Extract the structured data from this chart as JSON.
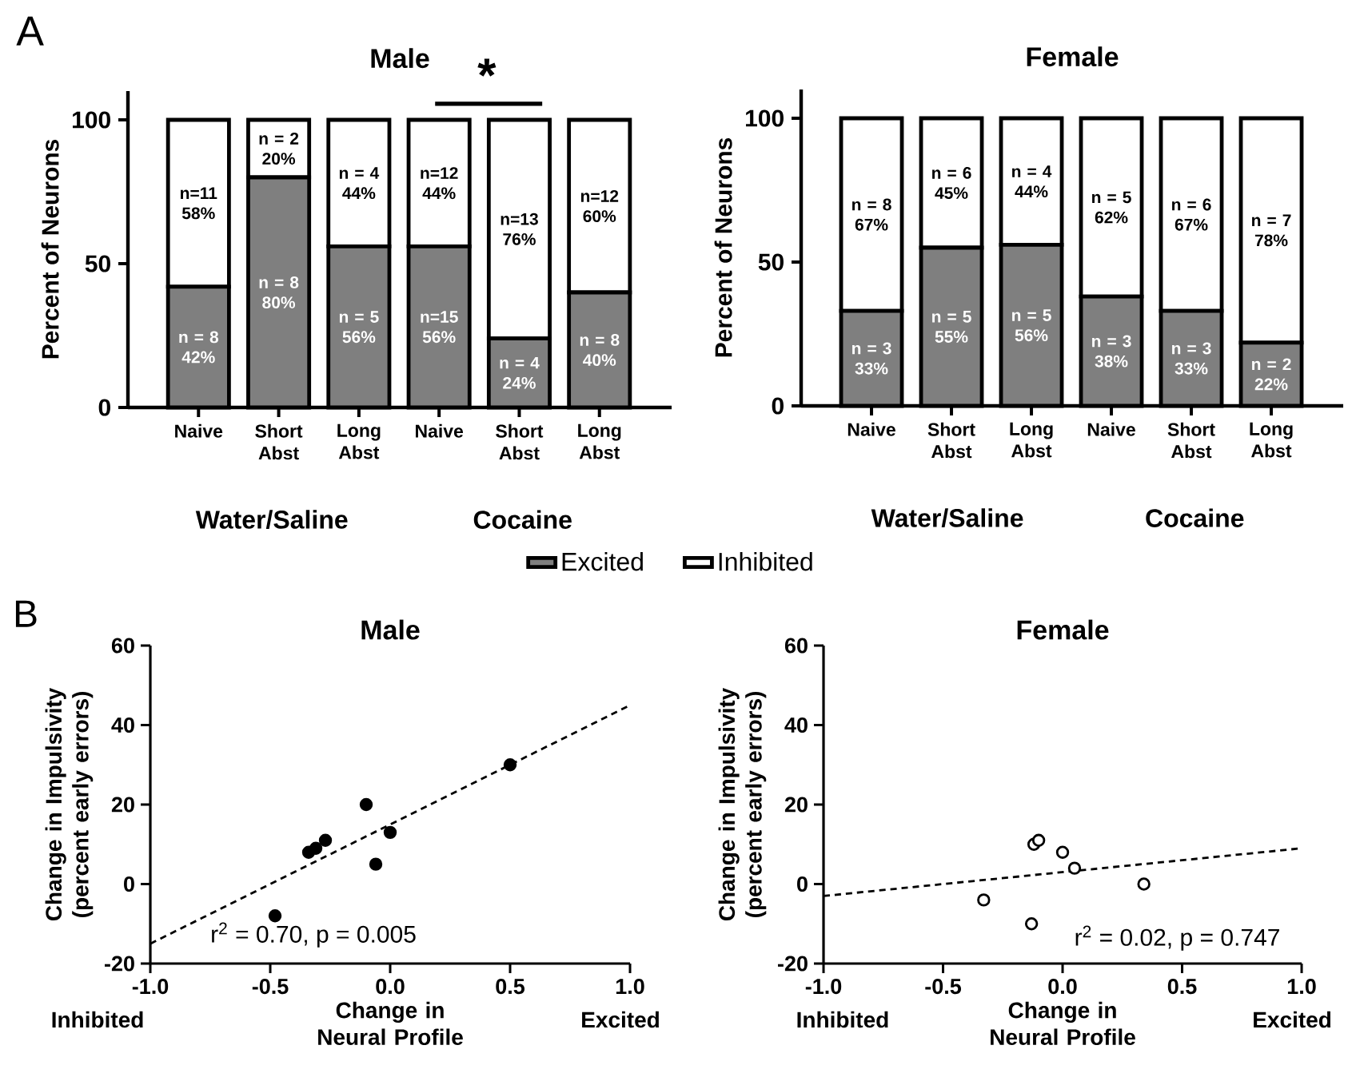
{
  "chart_data": [
    {
      "type": "bar",
      "title": "Male",
      "ylabel": "Percent of Neurons",
      "stacked": true,
      "legend": "bottom",
      "categories": [
        "Naive",
        "Short Abst",
        "Long Abst",
        "Naive",
        "Short Abst",
        "Long Abst"
      ],
      "ylim": [
        0,
        110
      ],
      "yticks": [
        0,
        50,
        100
      ],
      "annotations": [
        "A",
        "*",
        "Water/Saline",
        "Cocaine"
      ],
      "series": [
        {
          "name": "Excited",
          "color": "#7f7f7f",
          "values": [
            42,
            80,
            56,
            56,
            24,
            40
          ],
          "value_labels": [
            "n = 8 42%",
            "n = 8 80%",
            "n = 5 56%",
            "n=15 56%",
            "n = 4 24%",
            "n = 8 40%"
          ]
        },
        {
          "name": "Inhibited",
          "color": "#ffffff",
          "values": [
            58,
            20,
            44,
            44,
            76,
            60
          ],
          "value_labels": [
            "n=11 58%",
            "n = 2 20%",
            "n = 4 44%",
            "n=12 44%",
            "n=13 76%",
            "n=12 60%"
          ]
        }
      ]
    },
    {
      "type": "bar",
      "title": "Female",
      "ylabel": "Percent of Neurons",
      "stacked": true,
      "categories": [
        "Naive",
        "Short Abst",
        "Long Abst",
        "Naive",
        "Short Abst",
        "Long Abst"
      ],
      "ylim": [
        0,
        110
      ],
      "yticks": [
        0,
        50,
        100
      ],
      "annotations": [
        "Water/Saline",
        "Cocaine"
      ],
      "series": [
        {
          "color": "#7f7f7f",
          "values": [
            33,
            55,
            56,
            38,
            33,
            22
          ],
          "value_labels": [
            "n = 3 33%",
            "n = 5 55%",
            "n = 5 56%",
            "n = 3 38%",
            "n = 3 33%",
            "n = 2 22%"
          ]
        },
        {
          "color": "#ffffff",
          "values": [
            67,
            45,
            44,
            62,
            67,
            78
          ],
          "value_labels": [
            "n = 8 67%",
            "n = 6 45%",
            "n = 4 44%",
            "n = 5 62%",
            "n = 6 67%",
            "n = 7 78%"
          ]
        }
      ]
    },
    {
      "type": "scatter",
      "title": "Male",
      "xlabel": "Change in Neural Profile",
      "ylabel": "Change in Impulsivity (percent early errors)",
      "xlim": [
        -1,
        1
      ],
      "ylim": [
        -20,
        60
      ],
      "xticks": [
        {
          "value": -1,
          "label": "-1.0"
        },
        {
          "value": -0.5,
          "label": "-0.5"
        },
        {
          "value": 0,
          "label": "0.0"
        },
        {
          "value": 0.5,
          "label": "0.5"
        },
        {
          "value": 1,
          "label": "1.0"
        }
      ],
      "yticks": [
        -20,
        0,
        20,
        40,
        60
      ],
      "annotations": [
        "B",
        "r$^{2}$ = 0.70, p = 0.005",
        "Inhibited",
        "Excited"
      ],
      "series": [
        {
          "color": "#000000",
          "marker": "circle",
          "x": [
            -0.48,
            -0.34,
            -0.31,
            -0.27,
            -0.1,
            -0.06,
            0.0,
            0.5
          ],
          "values": [
            -8,
            8,
            9,
            11,
            20,
            5,
            13,
            30
          ]
        },
        {
          "type": "line",
          "line_style": "dashed",
          "marker": "none",
          "color": "#000000",
          "x": [
            -1,
            1
          ],
          "values": [
            -15,
            45
          ]
        }
      ]
    },
    {
      "type": "scatter",
      "title": "Female",
      "xlabel": "Change in Neural Profile",
      "ylabel": "Change in Impulsivity (percent early errors)",
      "xlim": [
        -1,
        1
      ],
      "ylim": [
        -20,
        60
      ],
      "xticks": [
        {
          "value": -1,
          "label": "-1.0"
        },
        {
          "value": -0.5,
          "label": "-0.5"
        },
        {
          "value": 0,
          "label": "0.0"
        },
        {
          "value": 0.5,
          "label": "0.5"
        },
        {
          "value": 1,
          "label": "1.0"
        }
      ],
      "yticks": [
        -20,
        0,
        20,
        40,
        60
      ],
      "annotations": [
        "r$^{2}$ = 0.02, p = 0.747",
        "Inhibited",
        "Excited"
      ],
      "series": [
        {
          "color": "#ffffff",
          "marker": "circle",
          "x": [
            -0.33,
            -0.13,
            -0.12,
            -0.1,
            0.0,
            0.05,
            0.34
          ],
          "values": [
            -4,
            -10,
            10,
            11,
            8,
            4,
            0
          ]
        },
        {
          "type": "line",
          "line_style": "dashed",
          "marker": "none",
          "color": "#000000",
          "x": [
            -1,
            1
          ],
          "values": [
            -3,
            9
          ]
        }
      ]
    }
  ]
}
